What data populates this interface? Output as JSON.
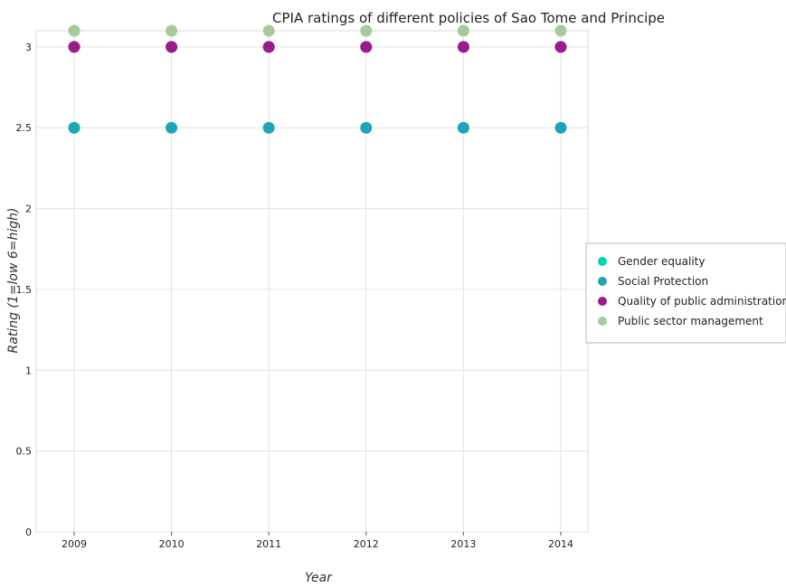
{
  "chart_data": {
    "type": "scatter",
    "title": "CPIA ratings of different policies of Sao Tome and Principe",
    "xlabel": "Year",
    "ylabel": "Rating (1=low 6=high)",
    "categories": [
      "2009",
      "2010",
      "2011",
      "2012",
      "2013",
      "2014"
    ],
    "ylim": [
      0,
      3.1
    ],
    "yticks": [
      "0",
      "0.5",
      "1",
      "1.5",
      "2",
      "2.5",
      "3"
    ],
    "grid": true,
    "legend_position": "right",
    "series": [
      {
        "name": "Gender equality",
        "color": "#00d6b0",
        "values": [
          3,
          3,
          3,
          3,
          3,
          3
        ]
      },
      {
        "name": "Social Protection",
        "color": "#1aa6b2",
        "values": [
          2.5,
          2.5,
          2.5,
          2.5,
          2.5,
          2.5
        ]
      },
      {
        "name": "Quality of public administration",
        "color": "#9c1a8c",
        "values": [
          3,
          3,
          3,
          3,
          3,
          3
        ]
      },
      {
        "name": "Public sector management",
        "color": "#a6ca9a",
        "values": [
          3.1,
          3.1,
          3.1,
          3.1,
          3.1,
          3.1
        ]
      }
    ]
  }
}
